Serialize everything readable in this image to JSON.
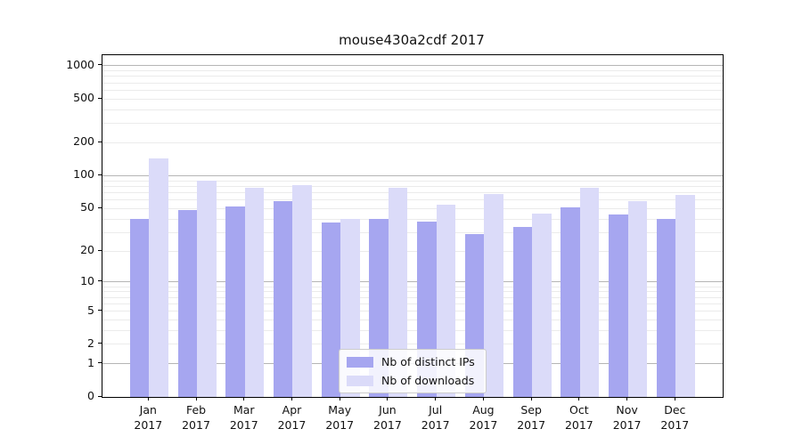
{
  "title": "mouse430a2cdf 2017",
  "chart_data": {
    "type": "bar",
    "title": "mouse430a2cdf 2017",
    "categories": [
      "Jan",
      "Feb",
      "Mar",
      "Apr",
      "May",
      "Jun",
      "Jul",
      "Aug",
      "Sep",
      "Oct",
      "Nov",
      "Dec"
    ],
    "year_label": "2017",
    "series": [
      {
        "name": "Nb of distinct IPs",
        "color": "#a6a6f0",
        "values": [
          40,
          48,
          52,
          58,
          37,
          40,
          38,
          29,
          34,
          51,
          44,
          40
        ]
      },
      {
        "name": "Nb of downloads",
        "color": "#dbdbf9",
        "values": [
          145,
          90,
          78,
          82,
          40,
          78,
          54,
          68,
          45,
          78,
          58,
          67
        ]
      }
    ],
    "y_axis": {
      "scale": "log1p",
      "ticks": [
        0,
        1,
        2,
        5,
        10,
        20,
        50,
        100,
        200,
        500,
        1000
      ],
      "ylim": [
        0,
        1250
      ]
    },
    "gridlines": {
      "minor": [
        2,
        3,
        4,
        5,
        6,
        7,
        8,
        9,
        20,
        30,
        40,
        50,
        60,
        70,
        80,
        90,
        200,
        300,
        400,
        500,
        600,
        700,
        800,
        900
      ],
      "major": [
        1,
        10,
        100,
        1000
      ]
    },
    "legend": {
      "position": "lower-center",
      "entries": [
        "Nb of distinct IPs",
        "Nb of downloads"
      ]
    },
    "grid": true
  },
  "colors": {
    "distinct_ips": "#a6a6f0",
    "downloads": "#dbdbf9",
    "grid_minor": "#ebebeb",
    "grid_major": "#b5b5b5",
    "spine": "#000000"
  }
}
